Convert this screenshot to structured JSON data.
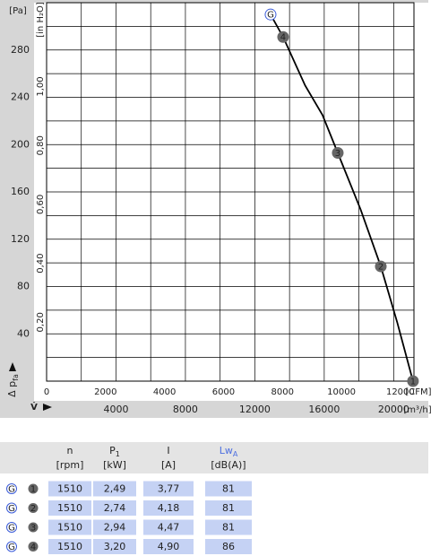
{
  "chart_data": {
    "type": "line",
    "y_label": "[Pa]",
    "y2_label": "[in H₂O]",
    "x_label": "[m³/h]",
    "x2_label": "[CFM]",
    "y_axis_title": "Δ p",
    "y_axis_title_sub": "fa",
    "x_axis_title": "V̇",
    "xlim": [
      0,
      21170
    ],
    "xticks": [
      4000,
      8000,
      12000,
      16000,
      20000
    ],
    "x2lim": [
      0,
      12460
    ],
    "x2ticks": [
      0,
      2000,
      4000,
      6000,
      8000,
      10000,
      12000
    ],
    "ylim": [
      0,
      320
    ],
    "yticks": [
      40,
      80,
      120,
      160,
      200,
      240,
      280
    ],
    "y2lim": [
      0,
      1.2847
    ],
    "y2ticks": [
      {
        "value": 0.2,
        "label": "0,20"
      },
      {
        "value": 0.4,
        "label": "0,40"
      },
      {
        "value": 0.6,
        "label": "0,60"
      },
      {
        "value": 0.8,
        "label": "0,80"
      },
      {
        "value": 1.0,
        "label": "1,00"
      }
    ],
    "grid": true,
    "series": [
      {
        "color": "#000000",
        "x": [
          12907,
          13630,
          14900,
          15900,
          16780,
          18100,
          19260,
          20200,
          21115
        ],
        "values": [
          310,
          291,
          250,
          225,
          193,
          145,
          97,
          50,
          0
        ]
      }
    ],
    "points": {
      "labels": [
        "G",
        "4",
        "3",
        "2",
        "1"
      ],
      "x": [
        12907,
        13630,
        16780,
        19260,
        21115
      ],
      "values": [
        310,
        291,
        193,
        97,
        0
      ],
      "colors": [
        "#3a5bd9",
        "#666666",
        "#666666",
        "#666666",
        "#666666"
      ]
    }
  },
  "table": {
    "headers": [
      {
        "name": "n",
        "unit": "[rpm]"
      },
      {
        "name": "P",
        "sub": "1",
        "unit": "[kW]"
      },
      {
        "name": "I",
        "unit": "[A]"
      },
      {
        "name": "Lw",
        "sub": "A",
        "unit": "[dB(A)]"
      }
    ],
    "rows": [
      {
        "mode": "G",
        "point": "1",
        "cells": [
          "1510",
          "2,49",
          "3,77",
          "81"
        ]
      },
      {
        "mode": "G",
        "point": "2",
        "cells": [
          "1510",
          "2,74",
          "4,18",
          "81"
        ]
      },
      {
        "mode": "G",
        "point": "3",
        "cells": [
          "1510",
          "2,94",
          "4,47",
          "81"
        ]
      },
      {
        "mode": "G",
        "point": "4",
        "cells": [
          "1510",
          "3,20",
          "4,90",
          "86"
        ]
      }
    ]
  }
}
